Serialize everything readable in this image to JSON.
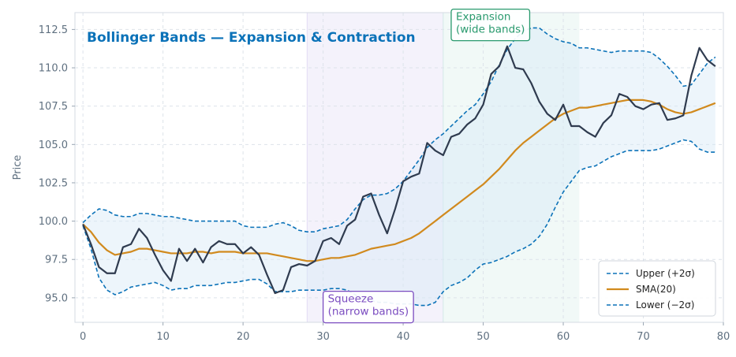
{
  "chart_data": {
    "type": "line",
    "title": "Bollinger Bands — Expansion & Contraction",
    "xlabel": "",
    "ylabel": "Price",
    "xlim": [
      -1,
      80
    ],
    "ylim": [
      93.4,
      113.6
    ],
    "x_ticks": [
      0,
      10,
      20,
      30,
      40,
      50,
      60,
      70,
      80
    ],
    "y_ticks": [
      95.0,
      97.5,
      100.0,
      102.5,
      105.0,
      107.5,
      110.0,
      112.5
    ],
    "y_tick_labels": [
      "95.0",
      "97.5",
      "100.0",
      "102.5",
      "105.0",
      "107.5",
      "110.0",
      "112.5"
    ],
    "grid": true,
    "legend_position": "bottom-right",
    "shaded_regions": [
      {
        "x_start": 28,
        "x_end": 45,
        "color": "#8a6fd6"
      },
      {
        "x_start": 45,
        "x_end": 62,
        "color": "#5fb8a4"
      }
    ],
    "annotations": [
      {
        "lines": [
          "Squeeze",
          "(narrow bands)"
        ],
        "x": 30,
        "y": 94.5,
        "color": "#7b4cc0"
      },
      {
        "lines": [
          "Expansion",
          "(wide bands)"
        ],
        "x": 46,
        "y": 112.9,
        "color": "#2a9a6e"
      }
    ],
    "legend": [
      {
        "label": "Upper (+2σ)",
        "key": "upper"
      },
      {
        "label": "SMA(20)",
        "key": "sma"
      },
      {
        "label": "Lower (−2σ)",
        "key": "lower"
      }
    ],
    "colors": {
      "price": "#2f3b4f",
      "sma": "#d18a1e",
      "bands": "#0b72b8",
      "band_fill": "#d6e8f7",
      "grid": "#dde3ea"
    },
    "price": [
      99.8,
      98.5,
      97.0,
      96.6,
      96.6,
      98.3,
      98.5,
      99.5,
      98.9,
      97.8,
      96.8,
      96.1,
      98.2,
      97.4,
      98.2,
      97.3,
      98.3,
      98.7,
      98.5,
      98.5,
      97.9,
      98.3,
      97.8,
      96.5,
      95.3,
      95.5,
      97.0,
      97.2,
      97.1,
      97.4,
      98.7,
      98.9,
      98.5,
      99.7,
      100.1,
      101.6,
      101.8,
      100.4,
      99.2,
      100.8,
      102.6,
      102.9,
      103.1,
      105.1,
      104.6,
      104.3,
      105.5,
      105.7,
      106.3,
      106.7,
      107.6,
      109.6,
      110.1,
      111.4,
      110.0,
      109.9,
      109.0,
      107.8,
      107.0,
      106.6,
      107.6,
      106.2,
      106.2,
      105.8,
      105.5,
      106.4,
      106.9,
      108.3,
      108.1,
      107.5,
      107.3,
      107.6,
      107.7,
      106.6,
      106.7,
      106.9,
      109.5,
      111.3,
      110.5,
      110.1
    ],
    "sma": [
      99.8,
      99.3,
      98.6,
      98.1,
      97.8,
      97.9,
      98.0,
      98.2,
      98.2,
      98.1,
      98.0,
      97.9,
      97.9,
      97.9,
      98.0,
      98.0,
      97.9,
      98.0,
      98.0,
      98.0,
      97.9,
      97.9,
      97.9,
      97.9,
      97.8,
      97.7,
      97.6,
      97.5,
      97.4,
      97.4,
      97.5,
      97.6,
      97.6,
      97.7,
      97.8,
      98.0,
      98.2,
      98.3,
      98.4,
      98.5,
      98.7,
      98.9,
      99.2,
      99.6,
      100.0,
      100.4,
      100.8,
      101.2,
      101.6,
      102.0,
      102.4,
      102.9,
      103.4,
      104.0,
      104.6,
      105.1,
      105.5,
      105.9,
      106.3,
      106.7,
      107.0,
      107.2,
      107.4,
      107.4,
      107.5,
      107.6,
      107.7,
      107.8,
      107.9,
      107.9,
      107.9,
      107.8,
      107.6,
      107.3,
      107.1,
      107.0,
      107.1,
      107.3,
      107.5,
      107.7
    ],
    "upper": [
      99.9,
      100.4,
      100.8,
      100.7,
      100.4,
      100.3,
      100.3,
      100.5,
      100.5,
      100.4,
      100.3,
      100.3,
      100.2,
      100.1,
      100.0,
      100.0,
      100.0,
      100.0,
      100.0,
      100.0,
      99.7,
      99.6,
      99.6,
      99.6,
      99.8,
      99.9,
      99.7,
      99.4,
      99.3,
      99.3,
      99.5,
      99.6,
      99.7,
      100.1,
      100.8,
      101.4,
      101.7,
      101.7,
      101.8,
      102.1,
      102.6,
      103.3,
      104.0,
      104.8,
      105.3,
      105.7,
      106.2,
      106.7,
      107.2,
      107.6,
      108.3,
      109.1,
      110.2,
      111.2,
      111.9,
      112.4,
      112.6,
      112.6,
      112.2,
      111.9,
      111.7,
      111.6,
      111.3,
      111.3,
      111.2,
      111.1,
      111.0,
      111.1,
      111.1,
      111.1,
      111.1,
      111.0,
      110.6,
      110.1,
      109.5,
      108.8,
      108.9,
      109.6,
      110.3,
      110.7
    ],
    "lower": [
      99.7,
      98.2,
      96.3,
      95.5,
      95.2,
      95.4,
      95.7,
      95.8,
      95.9,
      96.0,
      95.8,
      95.5,
      95.6,
      95.6,
      95.8,
      95.8,
      95.8,
      95.9,
      96.0,
      96.0,
      96.1,
      96.2,
      96.2,
      95.9,
      95.4,
      95.4,
      95.4,
      95.5,
      95.5,
      95.5,
      95.5,
      95.6,
      95.6,
      95.5,
      95.2,
      94.9,
      94.8,
      94.7,
      94.7,
      94.6,
      94.6,
      94.6,
      94.5,
      94.5,
      94.7,
      95.4,
      95.8,
      96.0,
      96.3,
      96.8,
      97.2,
      97.3,
      97.5,
      97.7,
      98.0,
      98.2,
      98.5,
      99.0,
      99.8,
      100.9,
      101.9,
      102.6,
      103.3,
      103.5,
      103.6,
      103.9,
      104.2,
      104.4,
      104.6,
      104.6,
      104.6,
      104.6,
      104.7,
      104.9,
      105.1,
      105.3,
      105.2,
      104.7,
      104.5,
      104.5
    ]
  }
}
